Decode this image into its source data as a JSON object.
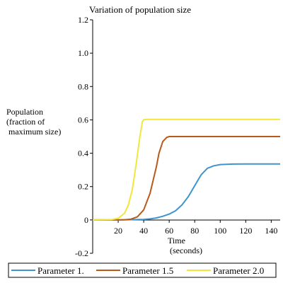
{
  "chart_data": {
    "type": "line",
    "title": "Variation of population size",
    "xlabel_lines": [
      "Time",
      "(seconds)"
    ],
    "ylabel_lines": [
      "Population",
      "(fraction of",
      " maximum size)"
    ],
    "xlim": [
      0,
      147
    ],
    "ylim": [
      -0.2,
      1.2
    ],
    "xticks": [
      20,
      40,
      60,
      80,
      100,
      120,
      140
    ],
    "xtick_labels": [
      "20",
      "40",
      "60",
      "80",
      "100",
      "120",
      "140"
    ],
    "yticks": [
      -0.2,
      0,
      0.2,
      0.4,
      0.6,
      0.8,
      1.0,
      1.2
    ],
    "ytick_labels": [
      "-0.2",
      "0",
      "0.2",
      "0.4",
      "0.6",
      "0.8",
      "1.0",
      "1.2"
    ],
    "grid": false,
    "legend_position": "bottom",
    "series": [
      {
        "name": "Parameter 1.",
        "color": "#3d95d0",
        "x": [
          0,
          20,
          40,
          45,
          50,
          55,
          60,
          65,
          70,
          75,
          80,
          85,
          90,
          95,
          100,
          110,
          120,
          130,
          147
        ],
        "y": [
          0,
          0,
          0.003,
          0.006,
          0.012,
          0.022,
          0.035,
          0.055,
          0.09,
          0.14,
          0.205,
          0.27,
          0.31,
          0.325,
          0.332,
          0.335,
          0.336,
          0.336,
          0.336
        ]
      },
      {
        "name": "Parameter 1.5",
        "color": "#b85a1a",
        "x": [
          0,
          25,
          30,
          35,
          40,
          45,
          50,
          52,
          55,
          58,
          60,
          65,
          80,
          100,
          120,
          147
        ],
        "y": [
          0,
          0.001,
          0.005,
          0.018,
          0.06,
          0.16,
          0.32,
          0.4,
          0.47,
          0.495,
          0.5,
          0.5,
          0.5,
          0.5,
          0.5,
          0.5
        ]
      },
      {
        "name": "Parameter 2.0",
        "color": "#f0e63c",
        "x": [
          0,
          15,
          20,
          25,
          28,
          31,
          34,
          37,
          39,
          40,
          42,
          50,
          80,
          120,
          147
        ],
        "y": [
          0,
          0.002,
          0.01,
          0.04,
          0.09,
          0.18,
          0.33,
          0.5,
          0.59,
          0.6,
          0.603,
          0.603,
          0.603,
          0.603,
          0.603
        ]
      }
    ]
  }
}
